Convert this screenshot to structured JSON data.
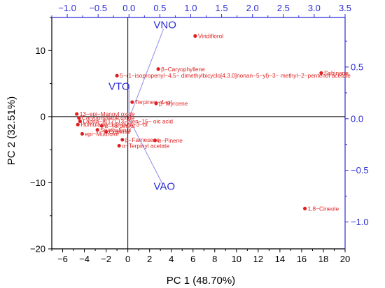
{
  "chart_data": {
    "type": "scatter",
    "subtype": "PCA biplot",
    "title": "",
    "xlabel": "PC 1 (48.70%)",
    "ylabel": "PC 2 (32.51%)",
    "xlim": [
      -7,
      20
    ],
    "ylim": [
      -20,
      15
    ],
    "x_ticks": [
      -6,
      -4,
      -2,
      0,
      2,
      4,
      6,
      8,
      10,
      12,
      14,
      16,
      18,
      20
    ],
    "y_ticks": [
      -20,
      -10,
      0,
      10
    ],
    "x2lim": [
      -1.25,
      3.5
    ],
    "y2lim": [
      -1.26,
      0.98
    ],
    "x2_ticks": [
      -1.0,
      -0.5,
      0.0,
      0.5,
      1.0,
      1.5,
      2.0,
      2.5,
      3.0,
      3.5
    ],
    "y2_ticks": [
      -1.0,
      -0.5,
      0.0,
      0.5
    ],
    "colors": {
      "points": "#e02020",
      "loadings": "#2b2bd6",
      "axes": "#000000"
    },
    "scores": [
      {
        "label": "Viridiflorol",
        "x": 6.2,
        "y": 12.2,
        "text": "Viridiflorol"
      },
      {
        "label": "Sabinene",
        "x": 17.8,
        "y": 6.6,
        "text": "Sabinene"
      },
      {
        "label": "5-(1-isopropenyl-4,5-dimethylbicyclo[4.3.0]nonan-5-yl)-3-methyl-2-pentenol acetate",
        "x": -1.0,
        "y": 6.2,
        "text": "5−(1−isopropenyl−4,5− dimethylbicyclo[4.3.0]nonan−5−yl)−3− methyl−2−pentenol acetate"
      },
      {
        "label": "β-Caryophyllene",
        "x": 2.8,
        "y": 7.2,
        "text": "β−Caryophyllene"
      },
      {
        "label": "Terpinen-4-ol",
        "x": 0.4,
        "y": 2.2,
        "text": "Terpinen−4−ol"
      },
      {
        "label": "β-Myrcene",
        "x": 2.6,
        "y": 2.0,
        "text": "β−Myrcene"
      },
      {
        "label": "13-Epimanoyl oxide",
        "x": -4.7,
        "y": 0.4,
        "text": "13−epi−Manoyl oxide"
      },
      {
        "label": "Caryophyllene oxide",
        "x": -4.5,
        "y": -0.2,
        "text": "Caryophyllene oxide"
      },
      {
        "label": "Labda-dien-oic acid",
        "x": -4.4,
        "y": -0.7,
        "text": "Labda−8(17),13−dien−15− oic acid"
      },
      {
        "label": "Humulane-1,6-dien-3-ol",
        "x": -4.6,
        "y": -1.2,
        "text": "Humulane−1,6−dien−3−ol"
      },
      {
        "label": "α-Terpineol",
        "x": -2.4,
        "y": -1.4,
        "text": "α−Terpineol"
      },
      {
        "label": "Spathulenol",
        "x": -2.8,
        "y": -2.0,
        "text": "Spathulenol"
      },
      {
        "label": "Cubenol",
        "x": -2.0,
        "y": -2.3,
        "text": "Cubenol"
      },
      {
        "label": "epi-Muurolol",
        "x": -4.2,
        "y": -2.6,
        "text": "epi−Muurolol"
      },
      {
        "label": "β-Farnesene",
        "x": -0.5,
        "y": -3.5,
        "text": "β−Farnesene"
      },
      {
        "label": "α-Pinene",
        "x": 2.5,
        "y": -3.6,
        "text": "α−Pinene"
      },
      {
        "label": "α-Terpinyl acetate",
        "x": -0.8,
        "y": -4.4,
        "text": "α−Terpinyl acetate"
      },
      {
        "label": "1,8-Cineole",
        "x": 16.3,
        "y": -13.9,
        "text": "1,8−Cineole"
      }
    ],
    "loadings": [
      {
        "label": "VNO",
        "x": 0.56,
        "y": 0.87
      },
      {
        "label": "VTO",
        "x": 0.0,
        "y": 0.32
      },
      {
        "label": "VAO",
        "x": 0.55,
        "y": -0.64
      }
    ]
  }
}
